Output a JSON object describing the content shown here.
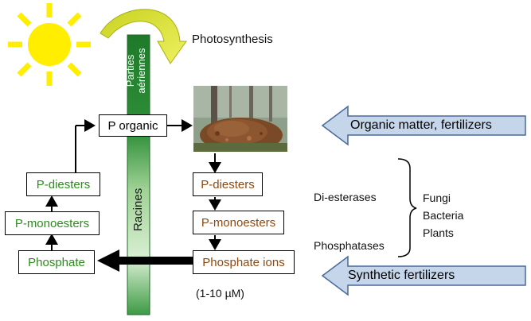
{
  "photosynthesis_label": "Photosynthesis",
  "stem_labels": {
    "aerial_line1": "Parties",
    "aerial_line2": "aériennes",
    "roots": "Racines"
  },
  "left_column": {
    "p_organic": "P organic",
    "p_diesters": "P-diesters",
    "p_monoesters": "P-monoesters",
    "phosphate": "Phosphate"
  },
  "right_column": {
    "p_diesters": "P-diesters",
    "p_monoesters": "P-monoesters",
    "phosphate_ions": "Phosphate ions",
    "concentration": "(1-10 µM)"
  },
  "enzymes": {
    "di_esterases": "Di-esterases",
    "phosphatases": "Phosphatases"
  },
  "organisms": [
    "Fungi",
    "Bacteria",
    "Plants"
  ],
  "input_arrows": {
    "organic": "Organic matter, fertilizers",
    "synthetic": "Synthetic fertilizers"
  },
  "colors": {
    "green_text": "#2e8b1e",
    "brown_text": "#8b4a13",
    "stem_dark": "#1e7a2a",
    "stem_light": "#cfeac8",
    "sun": "#ffee00",
    "arrow_fill": "#c5d5ea",
    "arrow_stroke": "#4a6a99",
    "curved_arrow": "#d8de2a"
  },
  "icons": [
    "sun-icon",
    "curved-arrow-icon",
    "leaf-litter-photo"
  ]
}
